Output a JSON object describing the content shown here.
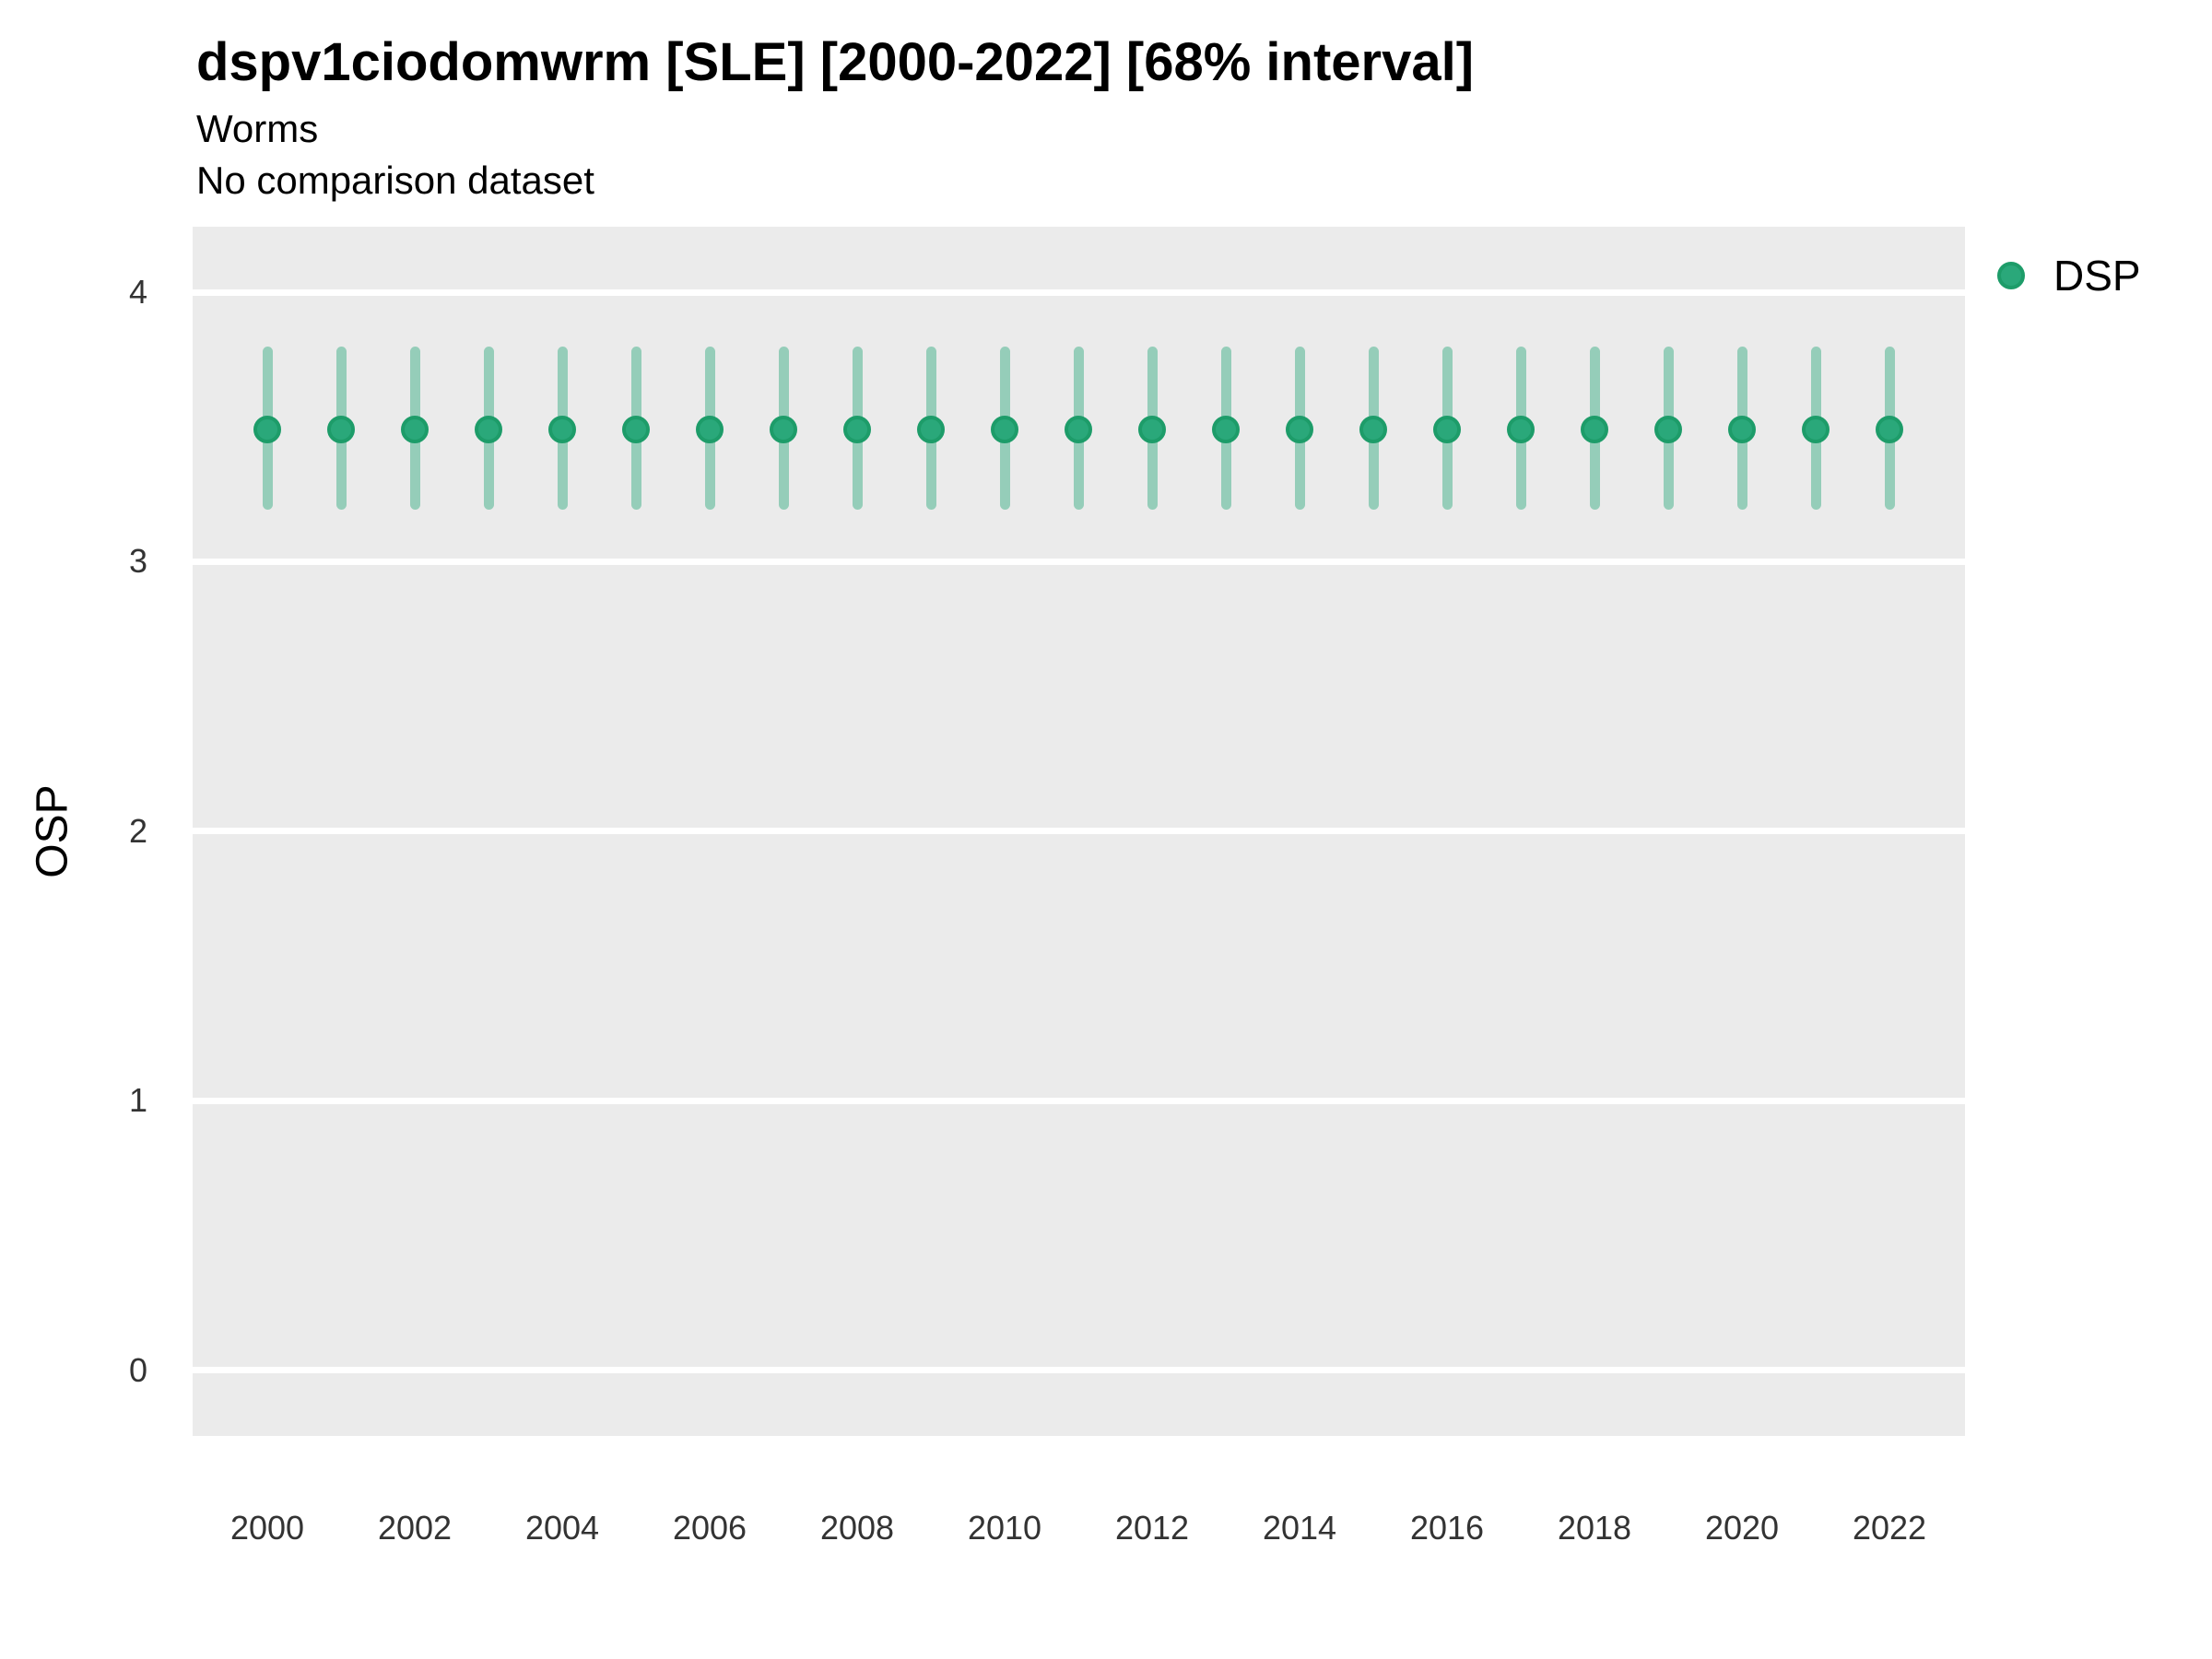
{
  "header": {
    "title": "dspv1ciodomwrm [SLE] [2000-2022] [68% interval]",
    "subtitle": "Worms",
    "comparison_note": "No comparison dataset"
  },
  "legend": {
    "position": "right",
    "items": [
      {
        "label": "DSP",
        "color": "#2aa87a",
        "border_color": "#1d9c69"
      }
    ]
  },
  "chart_data": {
    "type": "pointrange",
    "title": "dspv1ciodomwrm [SLE] [2000-2022] [68% interval]",
    "subtitle": "Worms",
    "note": "No comparison dataset",
    "xlabel": "",
    "ylabel": "OSP",
    "x": [
      2000,
      2001,
      2002,
      2003,
      2004,
      2005,
      2006,
      2007,
      2008,
      2009,
      2010,
      2011,
      2012,
      2013,
      2014,
      2015,
      2016,
      2017,
      2018,
      2019,
      2020,
      2021,
      2022
    ],
    "series": [
      {
        "name": "DSP",
        "values": [
          3.49,
          3.49,
          3.49,
          3.49,
          3.49,
          3.49,
          3.49,
          3.49,
          3.49,
          3.49,
          3.49,
          3.49,
          3.49,
          3.49,
          3.49,
          3.49,
          3.49,
          3.49,
          3.49,
          3.49,
          3.49,
          3.49,
          3.49
        ],
        "lower": [
          3.21,
          3.21,
          3.21,
          3.21,
          3.21,
          3.21,
          3.21,
          3.21,
          3.21,
          3.21,
          3.21,
          3.21,
          3.21,
          3.21,
          3.21,
          3.21,
          3.21,
          3.21,
          3.21,
          3.21,
          3.21,
          3.21,
          3.21
        ],
        "upper": [
          3.78,
          3.78,
          3.78,
          3.78,
          3.78,
          3.78,
          3.78,
          3.78,
          3.78,
          3.78,
          3.78,
          3.78,
          3.78,
          3.78,
          3.78,
          3.78,
          3.78,
          3.78,
          3.78,
          3.78,
          3.78,
          3.78,
          3.78
        ]
      }
    ],
    "interval_label": "68% interval",
    "yticks": [
      0,
      1,
      2,
      3,
      4
    ],
    "xticks": [
      2000,
      2002,
      2004,
      2006,
      2008,
      2010,
      2012,
      2014,
      2016,
      2018,
      2020,
      2022
    ],
    "ylim": [
      -0.24,
      4.24
    ],
    "grid": "horizontal-major-only",
    "legend_position": "right",
    "colors": {
      "point": "#2aa87a",
      "point_border": "#1d9c69",
      "interval_line": "#95cdb9",
      "panel_bg": "#ebebeb",
      "gridline": "#ffffff",
      "axis_text": "#333333"
    }
  }
}
